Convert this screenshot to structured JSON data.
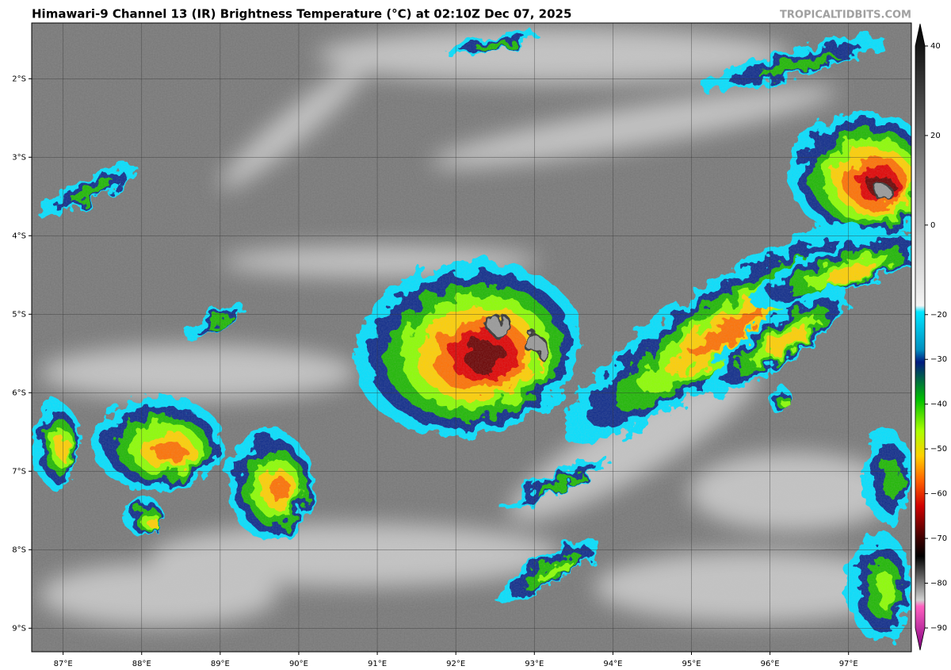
{
  "header": {
    "title": "Himawari-9 Channel 13 (IR) Brightness Temperature (°C) at 02:10Z Dec 07, 2025",
    "credit": "TROPICALTIDBITS.COM"
  },
  "map": {
    "lon_range": [
      86.6,
      97.8
    ],
    "lat_range": [
      -9.3,
      -1.29
    ],
    "grid": true,
    "lon_ticks": [
      {
        "value": 87,
        "label": "87°E"
      },
      {
        "value": 88,
        "label": "88°E"
      },
      {
        "value": 89,
        "label": "89°E"
      },
      {
        "value": 90,
        "label": "90°E"
      },
      {
        "value": 91,
        "label": "91°E"
      },
      {
        "value": 92,
        "label": "92°E"
      },
      {
        "value": 93,
        "label": "93°E"
      },
      {
        "value": 94,
        "label": "94°E"
      },
      {
        "value": 95,
        "label": "95°E"
      },
      {
        "value": 96,
        "label": "96°E"
      },
      {
        "value": 97,
        "label": "97°E"
      }
    ],
    "lat_ticks": [
      {
        "value": -2,
        "label": "2°S"
      },
      {
        "value": -3,
        "label": "3°S"
      },
      {
        "value": -4,
        "label": "4°S"
      },
      {
        "value": -5,
        "label": "5°S"
      },
      {
        "value": -6,
        "label": "6°S"
      },
      {
        "value": -7,
        "label": "7°S"
      },
      {
        "value": -8,
        "label": "8°S"
      },
      {
        "value": -9,
        "label": "9°S"
      }
    ]
  },
  "colorbar": {
    "range": [
      -90,
      40
    ],
    "ticks": [
      40,
      20,
      0,
      {
        "value": -20,
        "label": "−20"
      },
      {
        "value": -30,
        "label": "−30"
      },
      {
        "value": -40,
        "label": "−40"
      },
      {
        "value": -50,
        "label": "−50"
      },
      {
        "value": -60,
        "label": "−60"
      },
      {
        "value": -70,
        "label": "−70"
      },
      {
        "value": -80,
        "label": "−80"
      },
      {
        "value": -90,
        "label": "−90"
      }
    ]
  }
}
